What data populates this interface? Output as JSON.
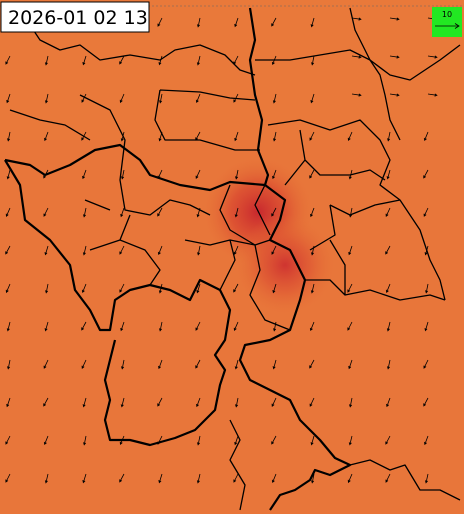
{
  "timestamp": "2026-01 02 13",
  "legend": {
    "label": "10"
  }
}
